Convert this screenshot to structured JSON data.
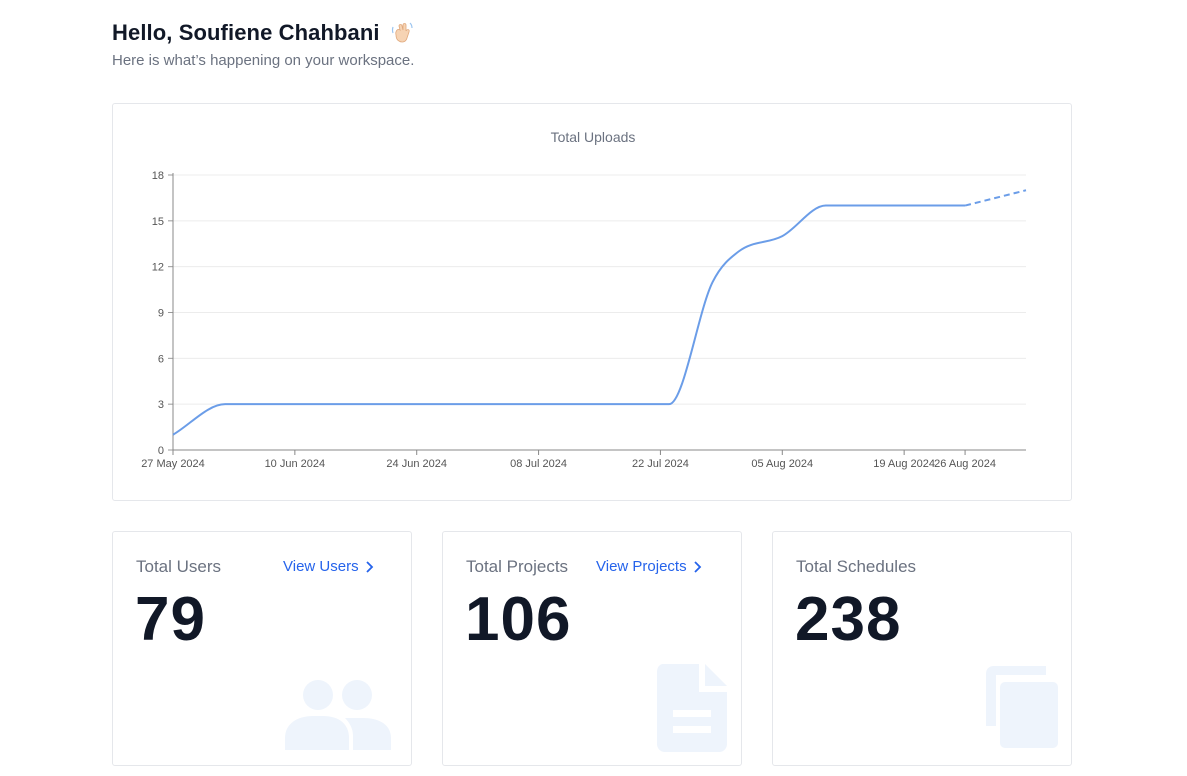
{
  "greeting": {
    "title": "Hello, Soufiene Chahbani",
    "subtitle": "Here is what’s happening on your workspace."
  },
  "chart_data": {
    "type": "line",
    "title": "Total Uploads",
    "xlabel": "",
    "ylabel": "",
    "ylim": [
      0,
      18
    ],
    "yticks": [
      0,
      3,
      6,
      9,
      12,
      15,
      18
    ],
    "xticks": [
      "27 May 2024",
      "10 Jun 2024",
      "24 Jun 2024",
      "08 Jul 2024",
      "22 Jul 2024",
      "05 Aug 2024",
      "19 Aug 2024",
      "26 Aug 2024"
    ],
    "xlim": [
      "2024-05-27",
      "2024-09-02"
    ],
    "series": [
      {
        "color": "#6b9de8",
        "points": [
          {
            "x": "2024-05-27",
            "y": 1
          },
          {
            "x": "2024-06-02",
            "y": 3
          },
          {
            "x": "2024-07-23",
            "y": 3
          },
          {
            "x": "2024-07-28",
            "y": 11
          },
          {
            "x": "2024-07-31",
            "y": 13
          },
          {
            "x": "2024-08-05",
            "y": 14
          },
          {
            "x": "2024-08-10",
            "y": 16
          },
          {
            "x": "2024-08-26",
            "y": 16
          }
        ],
        "projected": [
          {
            "x": "2024-08-26",
            "y": 16
          },
          {
            "x": "2024-09-02",
            "y": 17
          }
        ]
      }
    ],
    "grid": true
  },
  "stats": {
    "users": {
      "label": "Total Users",
      "link": "View Users",
      "value": "79",
      "icon": "users-icon"
    },
    "projects": {
      "label": "Total Projects",
      "link": "View Projects",
      "value": "106",
      "icon": "document-icon"
    },
    "schedules": {
      "label": "Total Schedules",
      "value": "238",
      "icon": "copy-icon"
    }
  },
  "colors": {
    "accent": "#2563eb",
    "line": "#6b9de8",
    "icon_bg": "#eef4fc"
  }
}
